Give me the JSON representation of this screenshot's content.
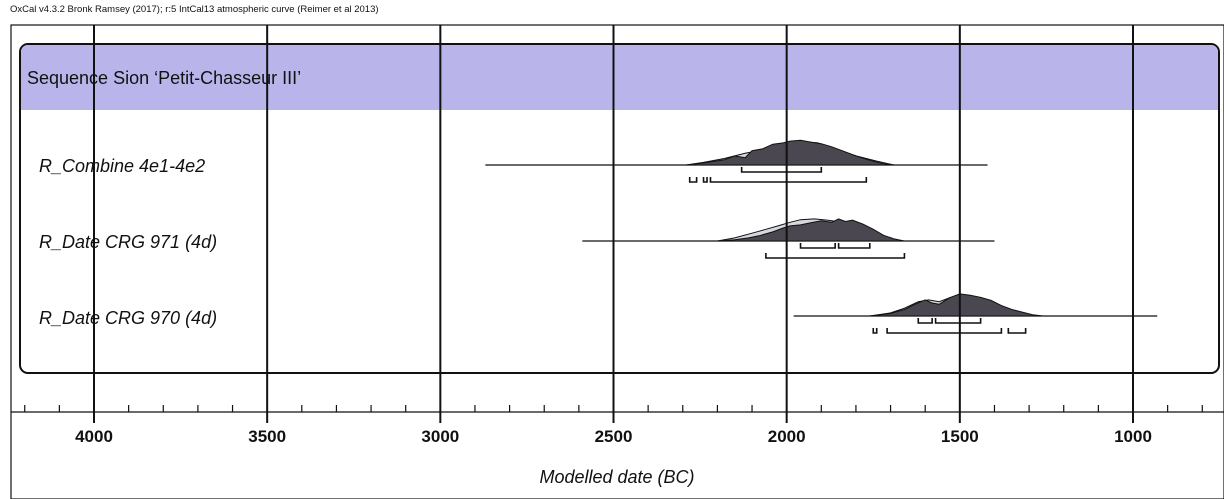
{
  "header_note": "OxCal v4.3.2 Bronk Ramsey (2017); r:5 IntCal13 atmospheric curve (Reimer et al 2013)",
  "colors": {
    "sequence_band": "#b9b5ea",
    "posterior_fill": "#4a4750",
    "prior_fill": "#d6d6de",
    "line": "#111111"
  },
  "chart_data": {
    "type": "oxcal-multiplot",
    "sequence_label": "Sequence Sion ‘Petit-Chasseur III’",
    "xlabel": "Modelled date (BC)",
    "xlim": [
      4200,
      800
    ],
    "x_direction": "decreasing-right",
    "major_ticks": [
      {
        "value": 4000,
        "label": "4000"
      },
      {
        "value": 3500,
        "label": "3500"
      },
      {
        "value": 3000,
        "label": "3000"
      },
      {
        "value": 2500,
        "label": "2500"
      },
      {
        "value": 2000,
        "label": "2000"
      },
      {
        "value": 1500,
        "label": "1500"
      },
      {
        "value": 1000,
        "label": "1000"
      }
    ],
    "minor_tick_step": 100,
    "vertical_gridlines_at_major_ticks": true,
    "rows": [
      {
        "label": "R_Combine 4e1-4e2",
        "range_line": [
          2870,
          1420
        ],
        "prior": [
          [
            2290,
            0
          ],
          [
            2240,
            0.1
          ],
          [
            2180,
            0.25
          ],
          [
            2120,
            0.45
          ],
          [
            2060,
            0.6
          ],
          [
            2000,
            0.78
          ],
          [
            1960,
            0.9
          ],
          [
            1910,
            0.85
          ],
          [
            1860,
            0.6
          ],
          [
            1800,
            0.35
          ],
          [
            1740,
            0.15
          ],
          [
            1690,
            0
          ]
        ],
        "posterior": [
          [
            2290,
            0
          ],
          [
            2240,
            0.08
          ],
          [
            2180,
            0.2
          ],
          [
            2150,
            0.35
          ],
          [
            2120,
            0.28
          ],
          [
            2100,
            0.55
          ],
          [
            2070,
            0.62
          ],
          [
            2040,
            0.8
          ],
          [
            2010,
            0.85
          ],
          [
            1990,
            0.92
          ],
          [
            1960,
            0.95
          ],
          [
            1930,
            0.88
          ],
          [
            1900,
            0.82
          ],
          [
            1870,
            0.7
          ],
          [
            1840,
            0.55
          ],
          [
            1800,
            0.35
          ],
          [
            1760,
            0.18
          ],
          [
            1720,
            0.05
          ],
          [
            1690,
            0
          ]
        ],
        "ranges_1sigma": [
          [
            2130,
            1900
          ]
        ],
        "ranges_2sigma": [
          [
            2280,
            2260
          ],
          [
            2240,
            2230
          ],
          [
            2220,
            1770
          ]
        ]
      },
      {
        "label": "R_Date CRG 971 (4d)",
        "range_line": [
          2590,
          1400
        ],
        "prior": [
          [
            2200,
            0
          ],
          [
            2150,
            0.12
          ],
          [
            2100,
            0.3
          ],
          [
            2060,
            0.45
          ],
          [
            2020,
            0.6
          ],
          [
            1990,
            0.72
          ],
          [
            1960,
            0.82
          ],
          [
            1920,
            0.85
          ],
          [
            1880,
            0.8
          ],
          [
            1840,
            0.72
          ],
          [
            1800,
            0.55
          ],
          [
            1760,
            0.35
          ],
          [
            1720,
            0.15
          ],
          [
            1680,
            0
          ]
        ],
        "posterior": [
          [
            2200,
            0
          ],
          [
            2150,
            0.05
          ],
          [
            2110,
            0.12
          ],
          [
            2080,
            0.2
          ],
          [
            2040,
            0.35
          ],
          [
            2010,
            0.5
          ],
          [
            1990,
            0.58
          ],
          [
            1960,
            0.62
          ],
          [
            1930,
            0.7
          ],
          [
            1900,
            0.78
          ],
          [
            1870,
            0.72
          ],
          [
            1850,
            0.85
          ],
          [
            1830,
            0.75
          ],
          [
            1810,
            0.8
          ],
          [
            1780,
            0.65
          ],
          [
            1750,
            0.45
          ],
          [
            1720,
            0.22
          ],
          [
            1690,
            0.08
          ],
          [
            1660,
            0
          ]
        ],
        "ranges_1sigma": [
          [
            1960,
            1860
          ],
          [
            1850,
            1760
          ]
        ],
        "ranges_2sigma": [
          [
            2060,
            1660
          ]
        ]
      },
      {
        "label": "R_Date CRG 970 (4d)",
        "range_line": [
          1980,
          930
        ],
        "prior": [
          [
            1760,
            0
          ],
          [
            1700,
            0.12
          ],
          [
            1660,
            0.3
          ],
          [
            1620,
            0.55
          ],
          [
            1590,
            0.62
          ],
          [
            1560,
            0.55
          ],
          [
            1530,
            0.7
          ],
          [
            1500,
            0.82
          ],
          [
            1470,
            0.78
          ],
          [
            1430,
            0.6
          ],
          [
            1390,
            0.35
          ],
          [
            1350,
            0.22
          ],
          [
            1320,
            0.1
          ],
          [
            1270,
            0
          ]
        ],
        "posterior": [
          [
            1760,
            0
          ],
          [
            1700,
            0.1
          ],
          [
            1660,
            0.25
          ],
          [
            1630,
            0.45
          ],
          [
            1600,
            0.62
          ],
          [
            1580,
            0.5
          ],
          [
            1560,
            0.45
          ],
          [
            1530,
            0.7
          ],
          [
            1500,
            0.85
          ],
          [
            1470,
            0.8
          ],
          [
            1440,
            0.72
          ],
          [
            1410,
            0.6
          ],
          [
            1380,
            0.4
          ],
          [
            1350,
            0.25
          ],
          [
            1320,
            0.15
          ],
          [
            1290,
            0.05
          ],
          [
            1260,
            0
          ]
        ],
        "ranges_1sigma": [
          [
            1620,
            1580
          ],
          [
            1570,
            1440
          ]
        ],
        "ranges_2sigma": [
          [
            1750,
            1740
          ],
          [
            1710,
            1380
          ],
          [
            1360,
            1310
          ]
        ]
      }
    ]
  }
}
